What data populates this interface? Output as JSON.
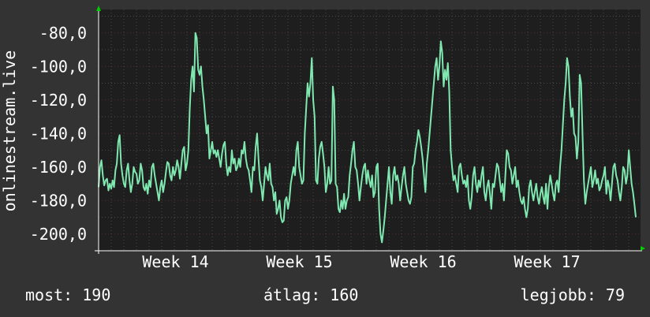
{
  "chart_data": {
    "type": "line",
    "ylabel": "onlinestream.live",
    "ylim": [
      -210,
      -66
    ],
    "yticks": [
      -80,
      -100,
      -120,
      -140,
      -160,
      -180,
      -200
    ],
    "ytick_labels": [
      "-80,0",
      "-100,0",
      "-120,0",
      "-140,0",
      "-160,0",
      "-180,0",
      "-200,0"
    ],
    "xtick_labels": [
      "Week 14",
      "Week 15",
      "Week 16",
      "Week 17"
    ],
    "grid": true,
    "colors": {
      "background": "#333333",
      "plot": "#1e1e1e",
      "line": "#7fe8b0",
      "grid": "#4a4a4a",
      "accent": "#e02020",
      "arrow": "#00cc00"
    },
    "series": [
      {
        "values": [
          -172,
          -160,
          -156,
          -165,
          -171,
          -168,
          -167,
          -174,
          -170,
          -173,
          -168,
          -172,
          -162,
          -158,
          -145,
          -141,
          -158,
          -165,
          -170,
          -172,
          -162,
          -158,
          -168,
          -175,
          -170,
          -160,
          -163,
          -164,
          -170,
          -168,
          -158,
          -162,
          -172,
          -174,
          -170,
          -176,
          -168,
          -172,
          -160,
          -158,
          -165,
          -170,
          -175,
          -180,
          -172,
          -168,
          -175,
          -170,
          -163,
          -157,
          -158,
          -165,
          -168,
          -160,
          -165,
          -162,
          -156,
          -160,
          -167,
          -158,
          -150,
          -148,
          -162,
          -158,
          -150,
          -125,
          -108,
          -100,
          -115,
          -80,
          -83,
          -102,
          -105,
          -100,
          -112,
          -120,
          -130,
          -140,
          -135,
          -155,
          -150,
          -145,
          -152,
          -150,
          -154,
          -150,
          -155,
          -160,
          -152,
          -147,
          -145,
          -158,
          -165,
          -160,
          -163,
          -150,
          -158,
          -155,
          -162,
          -160,
          -155,
          -160,
          -150,
          -152,
          -145,
          -155,
          -160,
          -162,
          -168,
          -175,
          -160,
          -162,
          -148,
          -140,
          -155,
          -168,
          -172,
          -180,
          -170,
          -160,
          -165,
          -168,
          -158,
          -170,
          -172,
          -180,
          -175,
          -188,
          -185,
          -180,
          -190,
          -193,
          -192,
          -180,
          -178,
          -185,
          -180,
          -170,
          -165,
          -160,
          -165,
          -150,
          -145,
          -160,
          -165,
          -170,
          -168,
          -140,
          -125,
          -110,
          -118,
          -110,
          -95,
          -120,
          -130,
          -168,
          -170,
          -155,
          -148,
          -145,
          -152,
          -160,
          -175,
          -170,
          -160,
          -170,
          -168,
          -112,
          -120,
          -170,
          -172,
          -185,
          -187,
          -180,
          -185,
          -176,
          -185,
          -180,
          -178,
          -165,
          -158,
          -150,
          -145,
          -160,
          -162,
          -170,
          -180,
          -172,
          -165,
          -160,
          -158,
          -170,
          -162,
          -168,
          -172,
          -165,
          -178,
          -175,
          -160,
          -158,
          -185,
          -200,
          -205,
          -198,
          -190,
          -180,
          -170,
          -160,
          -175,
          -182,
          -165,
          -160,
          -168,
          -165,
          -170,
          -180,
          -172,
          -165,
          -160,
          -170,
          -175,
          -180,
          -182,
          -178,
          -160,
          -158,
          -150,
          -145,
          -138,
          -142,
          -148,
          -155,
          -165,
          -175,
          -158,
          -150,
          -140,
          -130,
          -120,
          -110,
          -100,
          -95,
          -108,
          -100,
          -85,
          -92,
          -112,
          -102,
          -108,
          -98,
          -115,
          -150,
          -160,
          -168,
          -165,
          -170,
          -175,
          -160,
          -158,
          -165,
          -170,
          -168,
          -172,
          -165,
          -180,
          -185,
          -178,
          -165,
          -160,
          -170,
          -175,
          -168,
          -172,
          -165,
          -160,
          -175,
          -180,
          -172,
          -168,
          -176,
          -185,
          -170,
          -172,
          -165,
          -158,
          -160,
          -168,
          -175,
          -170,
          -180,
          -165,
          -150,
          -152,
          -160,
          -162,
          -170,
          -165,
          -160,
          -172,
          -168,
          -175,
          -180,
          -182,
          -178,
          -185,
          -190,
          -185,
          -172,
          -168,
          -175,
          -180,
          -175,
          -170,
          -178,
          -182,
          -176,
          -172,
          -178,
          -182,
          -170,
          -185,
          -172,
          -165,
          -170,
          -176,
          -180,
          -170,
          -168,
          -175,
          -160,
          -150,
          -135,
          -120,
          -110,
          -95,
          -100,
          -118,
          -130,
          -125,
          -140,
          -142,
          -155,
          -145,
          -105,
          -110,
          -140,
          -168,
          -182,
          -175,
          -170,
          -165,
          -160,
          -172,
          -168,
          -162,
          -170,
          -167,
          -174,
          -172,
          -168,
          -165,
          -160,
          -176,
          -168,
          -172,
          -180,
          -170,
          -160,
          -158,
          -165,
          -168,
          -175,
          -180,
          -172,
          -160,
          -162,
          -170,
          -165,
          -150,
          -160,
          -170,
          -175,
          -182,
          -190
        ]
      }
    ]
  },
  "stats": {
    "most": "most: 190",
    "avg": "átlag: 160",
    "best": "legjobb: 79"
  }
}
